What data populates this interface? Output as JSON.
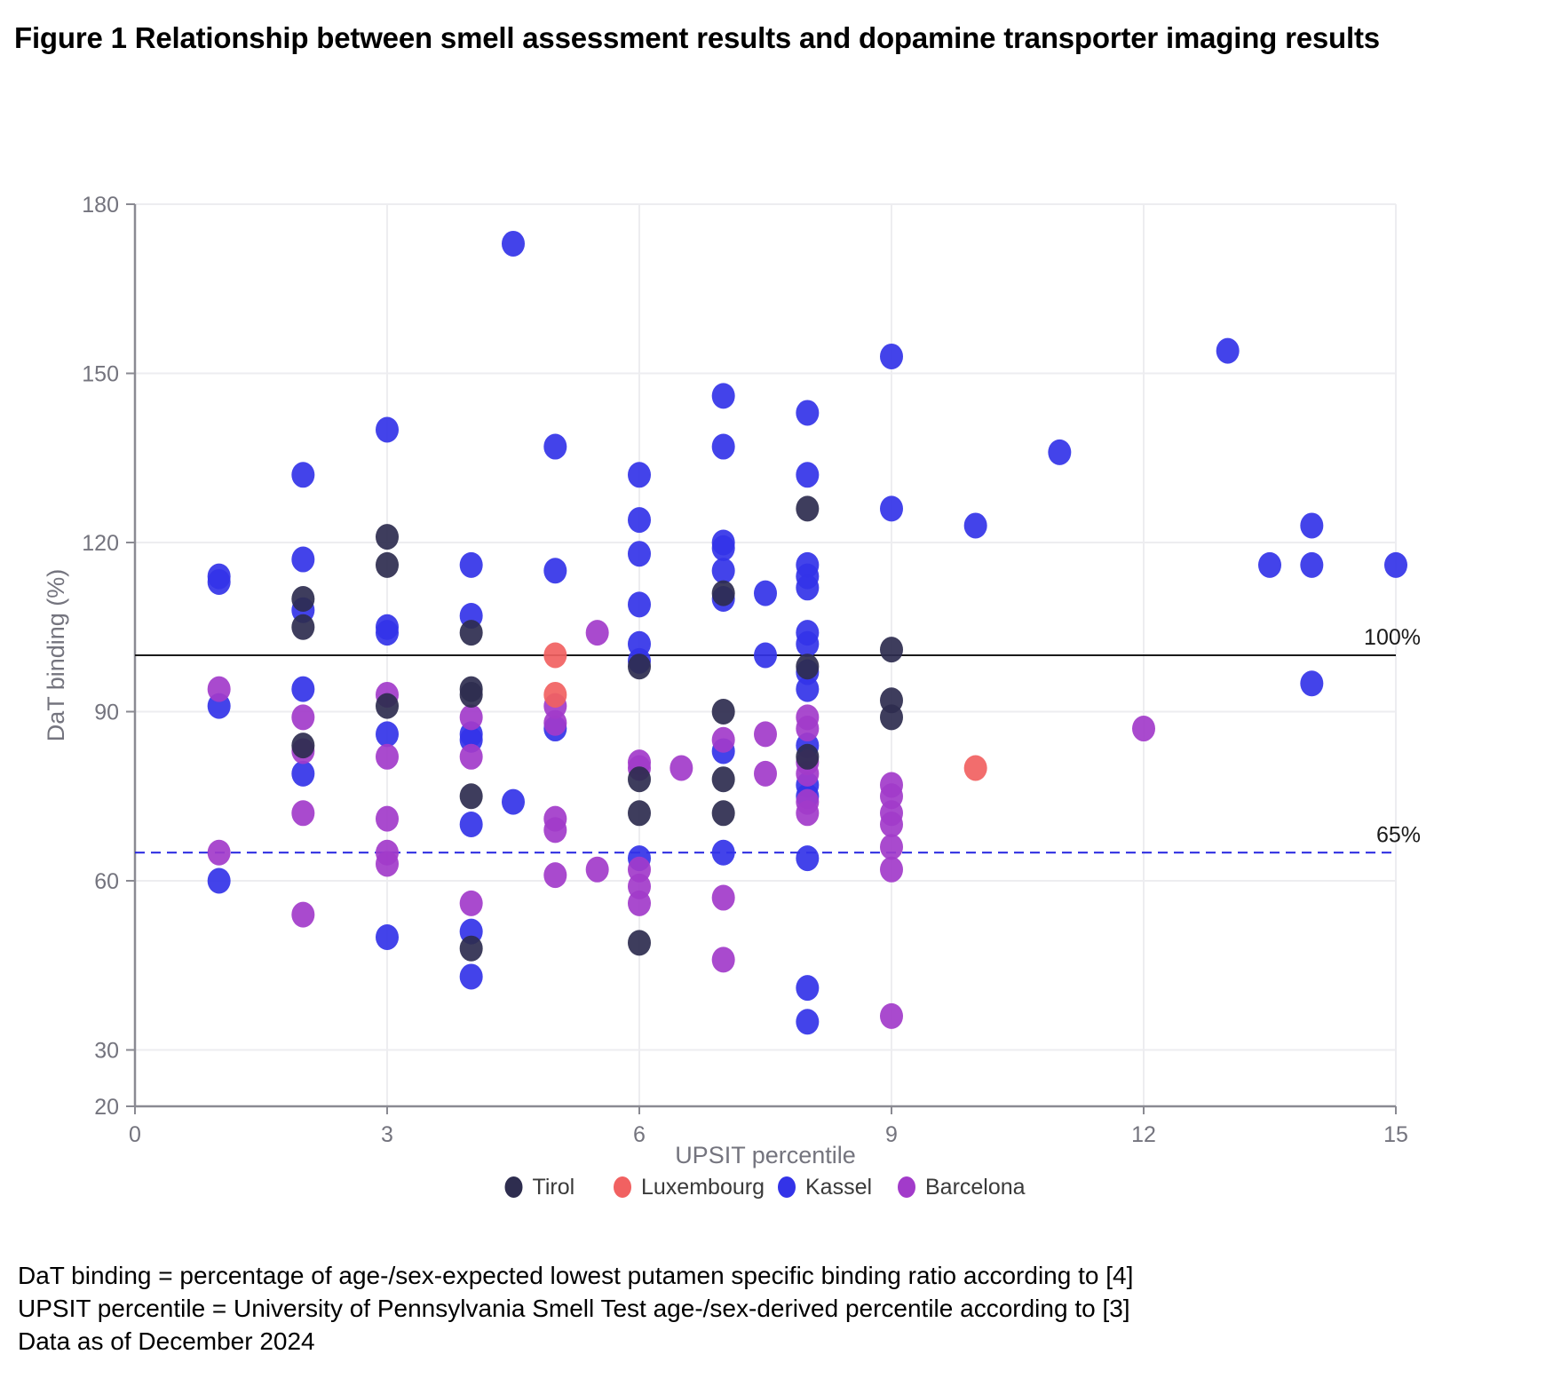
{
  "figure": {
    "title": "Figure 1 Relationship between smell assessment results and dopamine transporter imaging results"
  },
  "chart": {
    "xlabel": "UPSIT percentile",
    "ylabel": "DaT binding (%)",
    "x_tick_labels": [
      0,
      3,
      6,
      9,
      12,
      15
    ],
    "y_tick_labels": [
      180,
      150,
      120,
      90,
      60,
      30,
      20
    ],
    "grid_color": "#ededf0",
    "axis_color": "#8a8a92",
    "tick_text_color": "#74747e",
    "legend": [
      {
        "name": "Tirol",
        "color": "#2e2d4f"
      },
      {
        "name": "Luxembourg",
        "color": "#f16161"
      },
      {
        "name": "Kassel",
        "color": "#3333e8"
      },
      {
        "name": "Barcelona",
        "color": "#a23bca"
      }
    ]
  },
  "chart_data": {
    "type": "scatter",
    "title": "Figure 1 Relationship between smell assessment results and dopamine transporter imaging results",
    "xlabel": "UPSIT percentile",
    "ylabel": "DaT binding (%)",
    "xlim": [
      0,
      15
    ],
    "ylim": [
      20,
      180
    ],
    "x_gridlines": [
      3,
      6,
      9,
      12,
      15
    ],
    "y_gridlines": [
      30,
      60,
      90,
      120,
      150,
      180
    ],
    "grid": true,
    "legend_position": "bottom",
    "reference_lines": [
      {
        "value": 100,
        "label": "100%",
        "style": "solid",
        "color": "#1a1a1a"
      },
      {
        "value": 65,
        "label": "65%",
        "style": "dashed",
        "color": "#2424e0"
      }
    ],
    "series": [
      {
        "name": "Kassel",
        "color": "#3333e8",
        "points": [
          [
            1,
            114
          ],
          [
            1,
            113
          ],
          [
            1,
            91
          ],
          [
            1,
            60
          ],
          [
            2,
            132
          ],
          [
            2,
            117
          ],
          [
            2,
            108
          ],
          [
            2,
            94
          ],
          [
            2,
            79
          ],
          [
            3,
            140
          ],
          [
            3,
            105
          ],
          [
            3,
            104
          ],
          [
            3,
            86
          ],
          [
            3,
            50
          ],
          [
            4,
            116
          ],
          [
            4,
            107
          ],
          [
            4,
            86
          ],
          [
            4,
            85
          ],
          [
            4,
            70
          ],
          [
            4,
            51
          ],
          [
            4,
            43
          ],
          [
            4.5,
            173
          ],
          [
            4.5,
            74
          ],
          [
            5,
            137
          ],
          [
            5,
            115
          ],
          [
            5,
            87
          ],
          [
            6,
            132
          ],
          [
            6,
            124
          ],
          [
            6,
            118
          ],
          [
            6,
            109
          ],
          [
            6,
            102
          ],
          [
            6,
            99
          ],
          [
            6,
            64
          ],
          [
            7,
            146
          ],
          [
            7,
            137
          ],
          [
            7,
            120
          ],
          [
            7,
            119
          ],
          [
            7,
            115
          ],
          [
            7,
            110
          ],
          [
            7,
            83
          ],
          [
            7,
            65
          ],
          [
            7.5,
            111
          ],
          [
            7.5,
            100
          ],
          [
            8,
            143
          ],
          [
            8,
            132
          ],
          [
            8,
            116
          ],
          [
            8,
            114
          ],
          [
            8,
            112
          ],
          [
            8,
            104
          ],
          [
            8,
            102
          ],
          [
            8,
            97
          ],
          [
            8,
            94
          ],
          [
            8,
            84
          ],
          [
            8,
            77
          ],
          [
            8,
            75
          ],
          [
            8,
            64
          ],
          [
            8,
            41
          ],
          [
            8,
            35
          ],
          [
            9,
            153
          ],
          [
            9,
            126
          ],
          [
            10,
            123
          ],
          [
            11,
            136
          ],
          [
            13,
            154
          ],
          [
            13.5,
            116
          ],
          [
            14,
            123
          ],
          [
            14,
            116
          ],
          [
            14,
            95
          ],
          [
            15,
            116
          ]
        ]
      },
      {
        "name": "Barcelona",
        "color": "#a23bca",
        "points": [
          [
            1,
            94
          ],
          [
            1,
            65
          ],
          [
            2,
            89
          ],
          [
            2,
            83
          ],
          [
            2,
            72
          ],
          [
            2,
            54
          ],
          [
            3,
            93
          ],
          [
            3,
            82
          ],
          [
            3,
            71
          ],
          [
            3,
            65
          ],
          [
            3,
            63
          ],
          [
            4,
            89
          ],
          [
            4,
            82
          ],
          [
            4,
            56
          ],
          [
            5,
            91
          ],
          [
            5,
            88
          ],
          [
            5,
            71
          ],
          [
            5,
            69
          ],
          [
            5,
            61
          ],
          [
            5.5,
            104
          ],
          [
            5.5,
            62
          ],
          [
            6,
            81
          ],
          [
            6,
            80
          ],
          [
            6,
            62
          ],
          [
            6,
            59
          ],
          [
            6,
            56
          ],
          [
            6.5,
            80
          ],
          [
            7,
            85
          ],
          [
            7,
            57
          ],
          [
            7,
            46
          ],
          [
            7.5,
            86
          ],
          [
            7.5,
            79
          ],
          [
            8,
            89
          ],
          [
            8,
            87
          ],
          [
            8,
            81
          ],
          [
            8,
            79
          ],
          [
            8,
            74
          ],
          [
            8,
            72
          ],
          [
            9,
            77
          ],
          [
            9,
            75
          ],
          [
            9,
            72
          ],
          [
            9,
            70
          ],
          [
            9,
            66
          ],
          [
            9,
            62
          ],
          [
            9,
            36
          ],
          [
            12,
            87
          ]
        ]
      },
      {
        "name": "Tirol",
        "color": "#2e2d4f",
        "points": [
          [
            2,
            110
          ],
          [
            2,
            105
          ],
          [
            2,
            84
          ],
          [
            3,
            121
          ],
          [
            3,
            116
          ],
          [
            3,
            91
          ],
          [
            4,
            104
          ],
          [
            4,
            94
          ],
          [
            4,
            93
          ],
          [
            4,
            75
          ],
          [
            4,
            48
          ],
          [
            6,
            98
          ],
          [
            6,
            78
          ],
          [
            6,
            72
          ],
          [
            6,
            49
          ],
          [
            7,
            111
          ],
          [
            7,
            90
          ],
          [
            7,
            78
          ],
          [
            7,
            72
          ],
          [
            8,
            126
          ],
          [
            8,
            98
          ],
          [
            8,
            82
          ],
          [
            9,
            101
          ],
          [
            9,
            92
          ],
          [
            9,
            89
          ]
        ]
      },
      {
        "name": "Luxembourg",
        "color": "#f16161",
        "points": [
          [
            5,
            100
          ],
          [
            5,
            93
          ],
          [
            10,
            80
          ]
        ]
      }
    ]
  },
  "footnotes": [
    "DaT binding = percentage of age-/sex-expected lowest putamen specific binding ratio according to [4]",
    "UPSIT percentile = University of Pennsylvania Smell Test age-/sex-derived percentile according to [3]",
    "Data as of December 2024"
  ]
}
